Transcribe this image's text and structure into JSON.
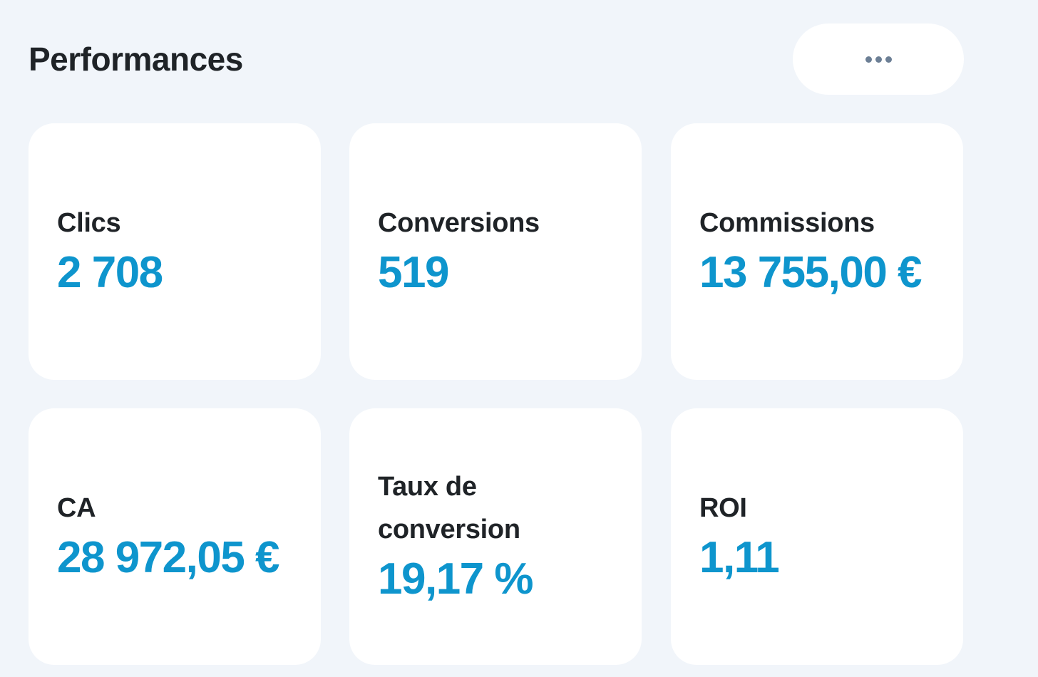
{
  "header": {
    "title": "Performances",
    "more_icon": "ellipsis-horizontal-icon"
  },
  "colors": {
    "background": "#f1f5fa",
    "card": "#ffffff",
    "value_accent": "#0e95cd",
    "label_text": "#1f2327",
    "dots": "#6c7f95"
  },
  "cards": [
    {
      "label": "Clics",
      "value": "2 708"
    },
    {
      "label": "Conversions",
      "value": "519"
    },
    {
      "label": "Commissions",
      "value": "13 755,00 €"
    },
    {
      "label": "CA",
      "value": "28 972,05 €"
    },
    {
      "label": "Taux de conversion",
      "value": "19,17 %"
    },
    {
      "label": "ROI",
      "value": "1,11"
    }
  ]
}
